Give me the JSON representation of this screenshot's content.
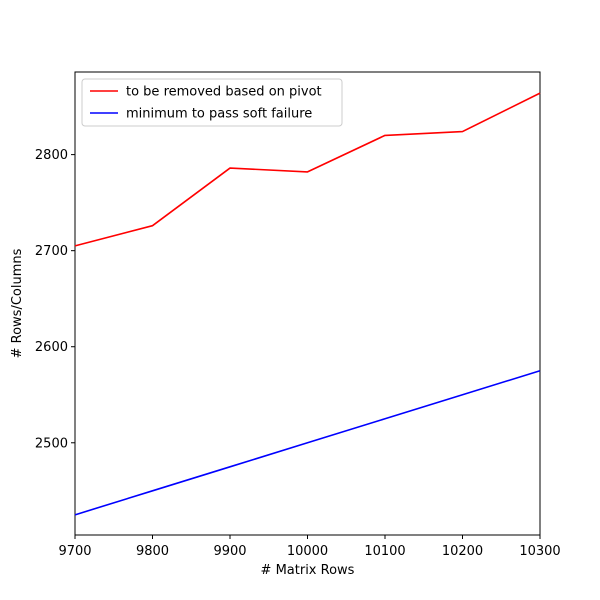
{
  "chart_data": {
    "type": "line",
    "title": "",
    "xlabel": "# Matrix Rows",
    "ylabel": "# Rows/Columns",
    "xlim": [
      9700,
      10300
    ],
    "ylim": [
      2404,
      2886
    ],
    "xticks": [
      9700,
      9800,
      9900,
      10000,
      10100,
      10200,
      10300
    ],
    "yticks": [
      2500,
      2600,
      2700,
      2800
    ],
    "grid": false,
    "legend_position": "top-left",
    "x": [
      9700,
      9800,
      9900,
      10000,
      10100,
      10200,
      10300
    ],
    "series": [
      {
        "name": "to be removed based on pivot",
        "color": "#ff0000",
        "values": [
          2705,
          2726,
          2786,
          2782,
          2820,
          2824,
          2864
        ]
      },
      {
        "name": "minimum to pass soft failure",
        "color": "#0000ff",
        "values": [
          2425,
          2450,
          2475,
          2500,
          2525,
          2550,
          2575
        ]
      }
    ]
  }
}
